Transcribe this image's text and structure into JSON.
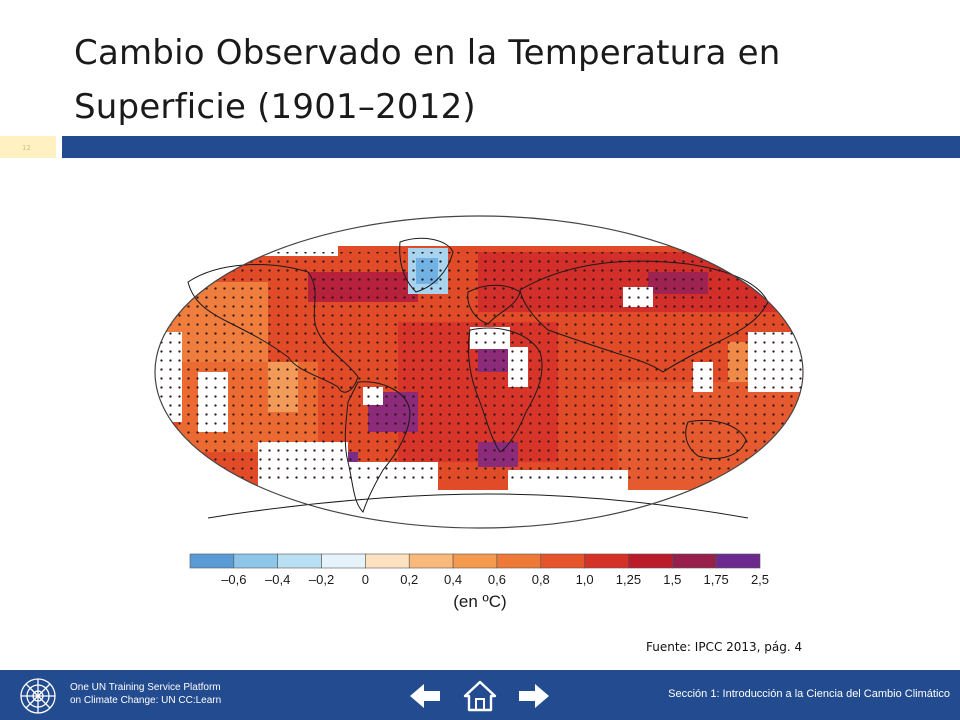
{
  "slide": {
    "title_line1": "Cambio Observado en la Temperatura en",
    "title_line2": "Superficie (1901–2012)",
    "slide_number": "12"
  },
  "figure": {
    "legend_ticks": [
      "–0,6",
      "–0,4",
      "–0,2",
      "0",
      "0,2",
      "0,4",
      "0,6",
      "0,8",
      "1,0",
      "1,25",
      "1,5",
      "1,75",
      "2,5"
    ],
    "legend_colors": [
      "#5b9bd5",
      "#8ec6ea",
      "#b9dff3",
      "#e6f3fb",
      "#fde2c1",
      "#f8b97a",
      "#f39a4e",
      "#ef7a37",
      "#e5542a",
      "#d63127",
      "#bb1d2b",
      "#96204a",
      "#6d2a8e"
    ],
    "legend_unit": "(en ºC)",
    "source": "Fuente: IPCC 2013, pág. 4"
  },
  "footer": {
    "platform_line1": "One UN Training Service Platform",
    "platform_line2": "on Climate Change: UN CC:Learn",
    "section": "Sección 1: Introducción a la Ciencia del Cambio Climático",
    "background_color": "#234b8f"
  },
  "icons": {
    "logo": "un-emblem-icon",
    "back": "arrow-left-icon",
    "home": "home-icon",
    "next": "arrow-right-icon"
  }
}
